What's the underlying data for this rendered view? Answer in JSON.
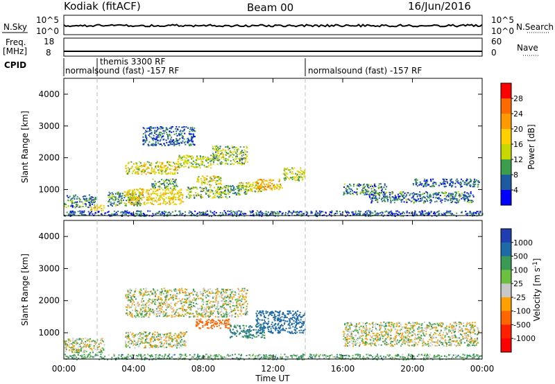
{
  "header": {
    "station": "Kodiak (fitACF)",
    "beam": "Beam 00",
    "date": "16/Jun/2016"
  },
  "noise_panel": {
    "left_label": "N.Sky",
    "right_label": "N.Search",
    "left_ticks": [
      "10^5",
      "10^0"
    ],
    "right_ticks": [
      "10^5",
      "10^0"
    ]
  },
  "freq_panel": {
    "left_label_1": "Freq.",
    "left_label_2": "[MHz]",
    "right_label": "Nave",
    "left_ticks": [
      "18",
      "8"
    ],
    "right_ticks": [
      "60",
      "0"
    ]
  },
  "cpid_panel": {
    "label": "CPID",
    "segments": [
      {
        "start": "00:00",
        "text": "normalsound (fast) -157 RF"
      },
      {
        "start": "01:55",
        "text": "themis 3300 RF"
      },
      {
        "start": "14:00",
        "text": "normalsound (fast) -157 RF"
      }
    ]
  },
  "x_axis": {
    "label": "Time UT",
    "ticks": [
      "00:00",
      "04:00",
      "08:00",
      "12:00",
      "16:00",
      "20:00",
      "00:00"
    ]
  },
  "power_panel": {
    "y_label": "Slant Range [km]",
    "y_ticks": [
      "4000",
      "3000",
      "2000",
      "1000"
    ],
    "cbar_label": "Power [dB]",
    "cbar_ticks": [
      "28",
      "24",
      "20",
      "16",
      "12",
      "8",
      "4"
    ],
    "cbar_colors": [
      "#ff0000",
      "#ff6a00",
      "#ff9a00",
      "#ffd000",
      "#c6d800",
      "#3a9e4a",
      "#1e5aa0",
      "#0000ff"
    ]
  },
  "velocity_panel": {
    "y_label": "Slant Range [km]",
    "y_ticks": [
      "4000",
      "3000",
      "2000",
      "1000"
    ],
    "cbar_label": "Velocity [m s",
    "cbar_label_sup": "-1",
    "cbar_label_end": "]",
    "cbar_ticks": [
      "1000",
      "500",
      "100",
      "25",
      "-25",
      "-100",
      "-500",
      "-1000"
    ],
    "cbar_colors": [
      "#1f3fb0",
      "#1e6aa6",
      "#3a9a55",
      "#6cc040",
      "#c8c8c8",
      "#ffa000",
      "#ff6600",
      "#ff2000",
      "#ff0000"
    ]
  },
  "chart_data": [
    {
      "type": "heatmap",
      "title": "Power",
      "xlabel": "Time UT",
      "ylabel": "Slant Range [km]",
      "xlim": [
        "00:00",
        "24:00"
      ],
      "ylim": [
        180,
        4500
      ],
      "clim": [
        0,
        30
      ],
      "colorbar_label": "Power [dB]",
      "regions": [
        {
          "t_start": 0.0,
          "t_end": 1.8,
          "r_min": 450,
          "r_max": 850,
          "level_db": 8
        },
        {
          "t_start": 1.5,
          "t_end": 2.3,
          "r_min": 350,
          "r_max": 550,
          "level_db": 18
        },
        {
          "t_start": 2.5,
          "t_end": 4.5,
          "r_min": 500,
          "r_max": 950,
          "level_db": 10
        },
        {
          "t_start": 3.5,
          "t_end": 6.8,
          "r_min": 550,
          "r_max": 1050,
          "level_db": 18
        },
        {
          "t_start": 5.0,
          "t_end": 6.5,
          "r_min": 1050,
          "r_max": 1350,
          "level_db": 10
        },
        {
          "t_start": 7.0,
          "t_end": 9.5,
          "r_min": 750,
          "r_max": 1100,
          "level_db": 12
        },
        {
          "t_start": 7.5,
          "t_end": 9.0,
          "r_min": 1150,
          "r_max": 1450,
          "level_db": 16
        },
        {
          "t_start": 9.0,
          "t_end": 10.5,
          "r_min": 850,
          "r_max": 1150,
          "level_db": 10
        },
        {
          "t_start": 10.0,
          "t_end": 11.5,
          "r_min": 950,
          "r_max": 1250,
          "level_db": 16
        },
        {
          "t_start": 11.0,
          "t_end": 12.5,
          "r_min": 1000,
          "r_max": 1350,
          "level_db": 20
        },
        {
          "t_start": 12.5,
          "t_end": 13.8,
          "r_min": 1300,
          "r_max": 1700,
          "level_db": 14
        },
        {
          "t_start": 3.5,
          "t_end": 6.5,
          "r_min": 1500,
          "r_max": 1900,
          "level_db": 16
        },
        {
          "t_start": 6.5,
          "t_end": 8.5,
          "r_min": 1700,
          "r_max": 2100,
          "level_db": 14
        },
        {
          "t_start": 8.5,
          "t_end": 10.5,
          "r_min": 1800,
          "r_max": 2400,
          "level_db": 12
        },
        {
          "t_start": 4.5,
          "t_end": 7.5,
          "r_min": 2400,
          "r_max": 3000,
          "level_db": 6
        },
        {
          "t_start": 16.0,
          "t_end": 18.5,
          "r_min": 850,
          "r_max": 1200,
          "level_db": 8
        },
        {
          "t_start": 17.5,
          "t_end": 23.5,
          "r_min": 600,
          "r_max": 950,
          "level_db": 8
        },
        {
          "t_start": 20.0,
          "t_end": 23.8,
          "r_min": 1100,
          "r_max": 1350,
          "level_db": 6
        },
        {
          "t_start": 0.0,
          "t_end": 24.0,
          "r_min": 180,
          "r_max": 350,
          "level_db": 6
        }
      ]
    },
    {
      "type": "heatmap",
      "title": "Velocity",
      "xlabel": "Time UT",
      "ylabel": "Slant Range [km]",
      "xlim": [
        "00:00",
        "24:00"
      ],
      "ylim": [
        180,
        4500
      ],
      "clim": [
        -1000,
        1000
      ],
      "colorbar_label": "Velocity [m s-1]",
      "regions": [
        {
          "t_start": 0.0,
          "t_end": 2.3,
          "r_min": 400,
          "r_max": 850,
          "velocity": 0
        },
        {
          "t_start": 3.5,
          "t_end": 7.0,
          "r_min": 550,
          "r_max": 1050,
          "velocity": 0
        },
        {
          "t_start": 7.5,
          "t_end": 9.5,
          "r_min": 1150,
          "r_max": 1450,
          "velocity": -300
        },
        {
          "t_start": 9.5,
          "t_end": 11.5,
          "r_min": 850,
          "r_max": 1250,
          "velocity": 100
        },
        {
          "t_start": 11.0,
          "t_end": 13.8,
          "r_min": 1000,
          "r_max": 1700,
          "velocity": 300
        },
        {
          "t_start": 3.5,
          "t_end": 10.5,
          "r_min": 1500,
          "r_max": 2400,
          "velocity": 0
        },
        {
          "t_start": 16.0,
          "t_end": 23.8,
          "r_min": 600,
          "r_max": 1350,
          "velocity": 0
        },
        {
          "t_start": 0.0,
          "t_end": 24.0,
          "r_min": 180,
          "r_max": 350,
          "velocity": 50
        }
      ]
    }
  ]
}
